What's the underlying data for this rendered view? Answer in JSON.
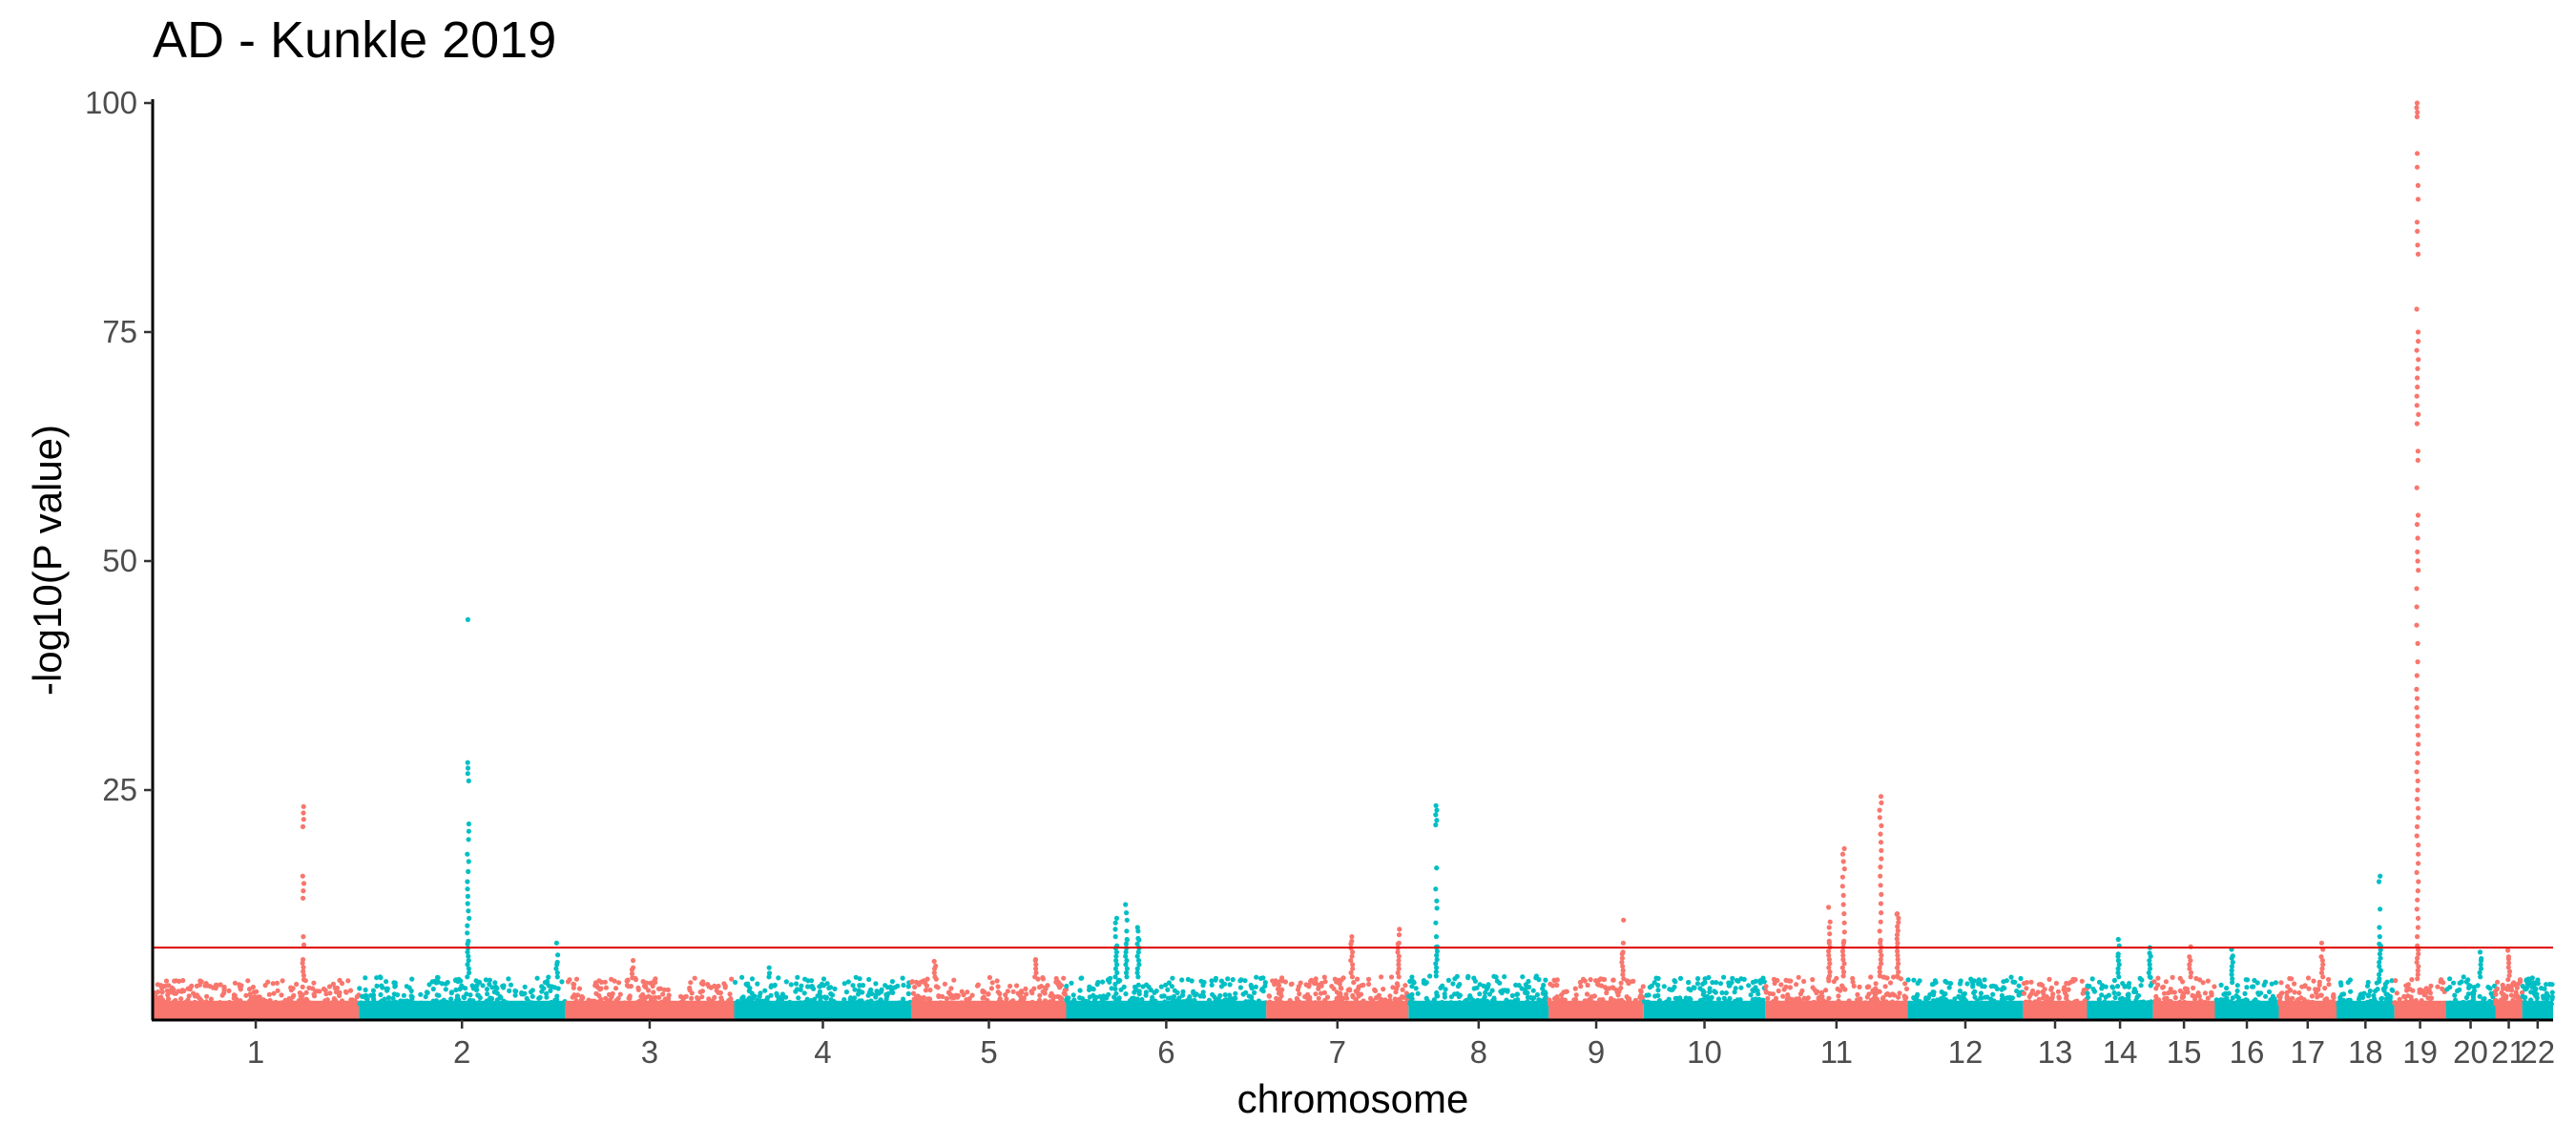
{
  "chart_data": {
    "type": "scatter",
    "title": "AD - Kunkle 2019",
    "xlabel": "chromosome",
    "ylabel": "-log10(P value)",
    "ylim": [
      0,
      100
    ],
    "y_ticks": [
      25,
      50,
      75,
      100
    ],
    "grid": false,
    "legend": "none",
    "significance_line": 7.8,
    "colors": {
      "odd": "#F8766D",
      "even": "#00BFC4",
      "threshold": "#E00000",
      "axis": "#000000"
    },
    "chromosomes": [
      {
        "label": "1",
        "start": 0.0,
        "end": 1.0,
        "max_bg": 4.3,
        "peaks": [
          {
            "pos": 0.73,
            "values": [
              23.2,
              22.5,
              21.8,
              21.0,
              15.6,
              14.8,
              14.0,
              13.2,
              9.0,
              8.1,
              6.5
            ]
          }
        ]
      },
      {
        "label": "2",
        "start": 1.0,
        "end": 2.0,
        "max_bg": 4.6,
        "peaks": [
          {
            "pos": 0.53,
            "values": [
              43.6,
              28.0,
              27.4,
              26.8,
              26.0,
              21.3,
              20.5,
              19.6,
              18.0,
              17.2,
              16.1,
              15.0,
              14.2,
              13.4,
              12.6,
              11.8,
              11.0,
              10.2,
              9.4,
              8.5
            ]
          },
          {
            "pos": 0.96,
            "values": [
              8.3,
              7.0,
              6.2
            ]
          }
        ]
      },
      {
        "label": "3",
        "start": 2.0,
        "end": 2.82,
        "max_bg": 4.5,
        "peaks": [
          {
            "pos": 0.4,
            "values": [
              6.4,
              5.6
            ]
          }
        ]
      },
      {
        "label": "4",
        "start": 2.82,
        "end": 3.68,
        "max_bg": 4.6,
        "peaks": [
          {
            "pos": 0.2,
            "values": [
              5.6,
              5.0
            ]
          }
        ]
      },
      {
        "label": "5",
        "start": 3.68,
        "end": 4.43,
        "max_bg": 4.6,
        "peaks": [
          {
            "pos": 0.15,
            "values": [
              6.3,
              5.8
            ]
          },
          {
            "pos": 0.8,
            "values": [
              6.5
            ]
          }
        ]
      },
      {
        "label": "6",
        "start": 4.43,
        "end": 5.4,
        "max_bg": 4.6,
        "peaks": [
          {
            "pos": 0.25,
            "values": [
              11.0,
              10.5,
              9.8,
              9.0,
              8.0
            ]
          },
          {
            "pos": 0.3,
            "values": [
              12.5,
              11.6,
              10.8,
              9.6,
              8.7
            ]
          },
          {
            "pos": 0.36,
            "values": [
              10.0,
              9.6,
              8.8
            ]
          }
        ]
      },
      {
        "label": "7",
        "start": 5.4,
        "end": 6.09,
        "max_bg": 4.6,
        "peaks": [
          {
            "pos": 0.6,
            "values": [
              9.0,
              8.5
            ]
          },
          {
            "pos": 0.93,
            "values": [
              9.8,
              9.2,
              8.3
            ]
          }
        ]
      },
      {
        "label": "8",
        "start": 6.09,
        "end": 6.77,
        "max_bg": 4.7,
        "peaks": [
          {
            "pos": 0.2,
            "values": [
              23.3,
              22.8,
              22.3,
              21.7,
              21.2,
              16.5,
              14.2,
              12.9,
              12.1,
              10.5,
              9.0,
              7.9
            ]
          }
        ]
      },
      {
        "label": "9",
        "start": 6.77,
        "end": 7.23,
        "max_bg": 4.4,
        "peaks": [
          {
            "pos": 0.78,
            "values": [
              10.8,
              8.3,
              7.3
            ]
          }
        ]
      },
      {
        "label": "10",
        "start": 7.23,
        "end": 7.82,
        "max_bg": 4.6,
        "peaks": []
      },
      {
        "label": "11",
        "start": 7.82,
        "end": 8.51,
        "max_bg": 4.7,
        "peaks": [
          {
            "pos": 0.45,
            "values": [
              12.2,
              10.6,
              10.0,
              9.3,
              8.5
            ]
          },
          {
            "pos": 0.55,
            "values": [
              18.6,
              18.0,
              17.2,
              16.4,
              15.5,
              14.5,
              13.5,
              12.5,
              11.5,
              10.5,
              9.5,
              8.5
            ]
          },
          {
            "pos": 0.81,
            "values": [
              24.3,
              23.6,
              22.8,
              22.0,
              21.1,
              20.2,
              19.3,
              18.4,
              17.5,
              16.6,
              15.6,
              14.6,
              13.6,
              12.6,
              11.6,
              10.6,
              9.6,
              8.6
            ]
          },
          {
            "pos": 0.93,
            "values": [
              11.5
            ]
          }
        ]
      },
      {
        "label": "12",
        "start": 8.51,
        "end": 9.07,
        "max_bg": 4.6,
        "peaks": []
      },
      {
        "label": "13",
        "start": 9.07,
        "end": 9.38,
        "max_bg": 4.4,
        "peaks": []
      },
      {
        "label": "14",
        "start": 9.38,
        "end": 9.7,
        "max_bg": 4.6,
        "peaks": [
          {
            "pos": 0.48,
            "values": [
              8.7,
              8.0,
              7.1
            ]
          },
          {
            "pos": 0.95,
            "values": [
              7.8,
              7.2
            ]
          }
        ]
      },
      {
        "label": "15",
        "start": 9.7,
        "end": 10.0,
        "max_bg": 4.6,
        "peaks": [
          {
            "pos": 0.6,
            "values": [
              7.9,
              6.8
            ]
          }
        ]
      },
      {
        "label": "16",
        "start": 10.0,
        "end": 10.31,
        "max_bg": 4.4,
        "peaks": [
          {
            "pos": 0.27,
            "values": [
              7.6,
              6.9
            ]
          }
        ]
      },
      {
        "label": "17",
        "start": 10.31,
        "end": 10.59,
        "max_bg": 4.6,
        "peaks": [
          {
            "pos": 0.75,
            "values": [
              8.3,
              7.6,
              6.8
            ]
          }
        ]
      },
      {
        "label": "18",
        "start": 10.59,
        "end": 10.87,
        "max_bg": 4.4,
        "peaks": [
          {
            "pos": 0.75,
            "values": [
              15.6,
              15.0,
              12.0,
              10.0,
              9.0,
              8.2
            ]
          }
        ]
      },
      {
        "label": "19",
        "start": 10.87,
        "end": 11.12,
        "max_bg": 4.4,
        "peaks": [
          {
            "pos": 0.45,
            "values": [
              100.0,
              99.5,
              99.0,
              98.5,
              94.5,
              93.0,
              91.0,
              89.5,
              87.0,
              86.0,
              84.5,
              83.5,
              77.5,
              75.0,
              74.0,
              73.0,
              72.0,
              71.0,
              70.0,
              69.0,
              68.0,
              67.0,
              66.0,
              65.0,
              62.0,
              61.0,
              58.0,
              55.0,
              54.0,
              52.5,
              51.0,
              50.0,
              49.0,
              47.0,
              45.0,
              43.0,
              41.0,
              39.0,
              37.5,
              36.0,
              35.0,
              34.0,
              33.0,
              32.0,
              31.0,
              30.0,
              29.0,
              28.0,
              27.0,
              26.0,
              25.0,
              24.0,
              23.0,
              22.0,
              21.0,
              20.0,
              19.0,
              18.0,
              17.0,
              16.0,
              15.0,
              14.0,
              13.0,
              12.0,
              11.0,
              10.0,
              9.0,
              8.0
            ]
          }
        ]
      },
      {
        "label": "20",
        "start": 11.12,
        "end": 11.36,
        "max_bg": 4.6,
        "peaks": [
          {
            "pos": 0.7,
            "values": [
              7.3,
              6.6
            ]
          }
        ]
      },
      {
        "label": "21",
        "start": 11.36,
        "end": 11.49,
        "max_bg": 4.3,
        "peaks": [
          {
            "pos": 0.5,
            "values": [
              7.5,
              6.8
            ]
          }
        ]
      },
      {
        "label": "22",
        "start": 11.49,
        "end": 11.64,
        "max_bg": 4.6,
        "peaks": []
      }
    ]
  }
}
